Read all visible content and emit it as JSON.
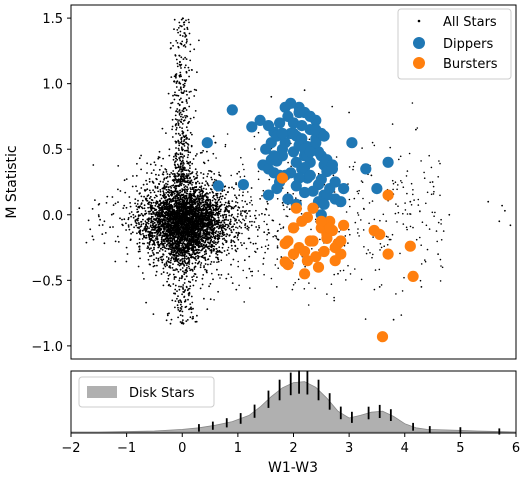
{
  "chart_data": [
    {
      "type": "scatter",
      "title": "",
      "xlabel": "",
      "ylabel": "M Statistic",
      "xlim": [
        -2,
        6
      ],
      "ylim": [
        -1.1,
        1.6
      ],
      "y_ticks": [
        -1.0,
        -0.5,
        0.0,
        0.5,
        1.0,
        1.5
      ],
      "y_tick_labels": [
        "−1.0",
        "−0.5",
        "0.0",
        "0.5",
        "1.0",
        "1.5"
      ],
      "legend_position": "top-right",
      "series": [
        {
          "name": "All Stars",
          "color": "#000000",
          "marker": "small-dot",
          "points_note_count": 5000,
          "core": {
            "x_center": 0.05,
            "y_center": -0.05,
            "x_spread": 0.35,
            "y_spread": 0.13
          },
          "plume": {
            "x_center": 0.0,
            "y_min": 0.25,
            "y_max": 1.5
          },
          "outliers": [
            [
              -1.85,
              0.05
            ],
            [
              -1.6,
              0.38
            ],
            [
              -1.4,
              -0.05
            ],
            [
              -1.0,
              -0.25
            ],
            [
              -0.65,
              -0.67
            ],
            [
              -0.5,
              0.4
            ],
            [
              -0.2,
              0.85
            ],
            [
              -0.15,
              -0.6
            ],
            [
              0.25,
              0.95
            ],
            [
              0.3,
              1.33
            ],
            [
              0.45,
              -0.72
            ],
            [
              0.6,
              0.55
            ],
            [
              0.9,
              0.8
            ],
            [
              1.6,
              0.9
            ],
            [
              1.7,
              -0.55
            ],
            [
              2.2,
              0.95
            ],
            [
              2.8,
              -0.45
            ],
            [
              3.0,
              0.78
            ],
            [
              3.4,
              0.3
            ],
            [
              3.55,
              -0.55
            ],
            [
              3.8,
              -0.8
            ],
            [
              4.1,
              0.1
            ],
            [
              4.3,
              -0.55
            ],
            [
              4.5,
              0.25
            ],
            [
              4.6,
              -0.3
            ],
            [
              4.8,
              0.0
            ],
            [
              5.5,
              0.1
            ],
            [
              5.7,
              -0.05
            ],
            [
              5.75,
              0.07
            ],
            [
              5.8,
              0.03
            ],
            [
              5.9,
              -0.08
            ],
            [
              4.2,
              0.65
            ]
          ]
        },
        {
          "name": "Dippers",
          "color": "#1f77b4",
          "x": [
            0.45,
            0.65,
            0.9,
            1.1,
            1.25,
            1.4,
            1.45,
            1.55,
            1.6,
            1.65,
            1.7,
            1.75,
            1.8,
            1.85,
            1.9,
            1.95,
            2.0,
            2.0,
            2.05,
            2.1,
            2.1,
            2.15,
            2.2,
            2.2,
            2.25,
            2.3,
            2.3,
            2.35,
            2.4,
            2.4,
            2.45,
            2.5,
            2.5,
            2.55,
            2.6,
            1.5,
            1.55,
            1.6,
            1.7,
            1.75,
            1.8,
            1.85,
            1.95,
            2.0,
            2.05,
            2.1,
            2.15,
            2.2,
            2.25,
            2.3,
            2.35,
            2.4,
            2.45,
            2.5,
            2.55,
            2.6,
            2.65,
            2.7,
            2.75,
            1.55,
            1.7,
            1.9,
            2.05,
            2.2,
            2.35,
            2.45,
            2.6,
            2.9,
            3.05,
            3.3,
            3.5,
            3.7,
            1.65,
            1.8,
            2.0,
            2.3,
            2.55,
            2.75,
            2.85,
            2.5,
            2.2,
            1.85,
            1.95,
            2.15,
            2.25,
            2.4,
            1.65,
            1.75,
            2.05,
            2.1,
            2.3,
            2.55,
            2.7
          ],
          "y": [
            0.55,
            0.22,
            0.8,
            0.23,
            0.67,
            0.72,
            0.38,
            0.35,
            0.55,
            0.63,
            0.41,
            0.3,
            0.5,
            0.82,
            0.75,
            0.62,
            0.48,
            0.7,
            0.6,
            0.82,
            0.53,
            0.35,
            0.78,
            0.45,
            0.28,
            0.65,
            0.4,
            0.5,
            0.72,
            0.58,
            0.23,
            0.45,
            0.62,
            0.38,
            0.33,
            0.5,
            0.68,
            0.42,
            0.6,
            0.25,
            0.45,
            0.55,
            0.32,
            0.62,
            0.4,
            0.28,
            0.58,
            0.36,
            0.52,
            0.3,
            0.18,
            0.65,
            0.48,
            0.27,
            0.15,
            0.42,
            0.2,
            0.38,
            0.12,
            0.15,
            0.2,
            0.12,
            0.08,
            0.17,
            0.05,
            0.1,
            0.15,
            0.2,
            0.55,
            0.35,
            0.2,
            0.4,
            0.45,
            0.62,
            0.7,
            0.75,
            0.08,
            0.25,
            0.1,
            0.0,
            0.5,
            0.3,
            0.85,
            0.68,
            0.45,
            0.55,
            0.32,
            0.7,
            0.22,
            0.78,
            0.48,
            0.6,
            0.35
          ],
          "marker_size": "large"
        },
        {
          "name": "Bursters",
          "color": "#ff7f0e",
          "x": [
            1.9,
            2.0,
            2.1,
            2.2,
            2.25,
            2.3,
            2.4,
            2.45,
            2.5,
            2.55,
            2.6,
            2.65,
            2.7,
            2.75,
            2.8,
            2.85,
            2.9,
            1.85,
            2.15,
            2.35,
            2.6,
            2.75,
            3.45,
            3.55,
            3.7,
            4.1,
            4.15,
            3.6,
            1.85,
            1.9,
            2.0,
            2.2,
            2.35,
            2.05,
            2.5,
            2.65,
            2.85,
            1.8,
            2.25,
            3.7
          ],
          "y": [
            -0.38,
            -0.3,
            -0.25,
            -0.45,
            -0.35,
            -0.2,
            -0.32,
            -0.4,
            -0.1,
            -0.28,
            -0.15,
            -0.05,
            -0.12,
            -0.35,
            -0.22,
            -0.3,
            -0.08,
            -0.22,
            -0.05,
            0.05,
            -0.18,
            -0.25,
            -0.12,
            -0.15,
            0.15,
            -0.24,
            -0.47,
            -0.93,
            -0.36,
            -0.2,
            -0.1,
            -0.28,
            -0.2,
            0.05,
            -0.05,
            -0.1,
            -0.2,
            0.28,
            -0.02,
            -0.3
          ],
          "marker_size": "large"
        }
      ]
    },
    {
      "type": "area",
      "title": "",
      "xlabel": "W1-W3",
      "ylabel": "",
      "xlim": [
        -2,
        6
      ],
      "x_ticks": [
        -2,
        -1,
        0,
        1,
        2,
        3,
        4,
        5,
        6
      ],
      "x_tick_labels": [
        "−2",
        "−1",
        "0",
        "1",
        "2",
        "3",
        "4",
        "5",
        "6"
      ],
      "legend_position": "top-left",
      "series": [
        {
          "name": "Disk Stars",
          "color": "#b0b0b0",
          "x": [
            -2.0,
            -1.5,
            -1.0,
            -0.5,
            0.0,
            0.3,
            0.6,
            0.9,
            1.2,
            1.4,
            1.6,
            1.8,
            2.0,
            2.2,
            2.4,
            2.6,
            2.8,
            3.0,
            3.2,
            3.4,
            3.6,
            3.8,
            4.0,
            4.2,
            4.4,
            4.7,
            5.0,
            5.3,
            5.7,
            6.0
          ],
          "values": [
            0.0,
            0.0,
            0.01,
            0.02,
            0.05,
            0.08,
            0.13,
            0.2,
            0.32,
            0.48,
            0.68,
            0.85,
            0.95,
            0.97,
            0.86,
            0.65,
            0.4,
            0.27,
            0.32,
            0.38,
            0.4,
            0.3,
            0.16,
            0.08,
            0.05,
            0.04,
            0.03,
            0.02,
            0.01,
            0.0
          ]
        }
      ],
      "error_bar_x": [
        0.3,
        0.55,
        0.8,
        1.05,
        1.3,
        1.55,
        1.75,
        1.95,
        2.1,
        2.25,
        2.45,
        2.65,
        2.85,
        3.05,
        3.35,
        3.55,
        3.75,
        4.15,
        4.45,
        5.0,
        5.7
      ]
    }
  ]
}
